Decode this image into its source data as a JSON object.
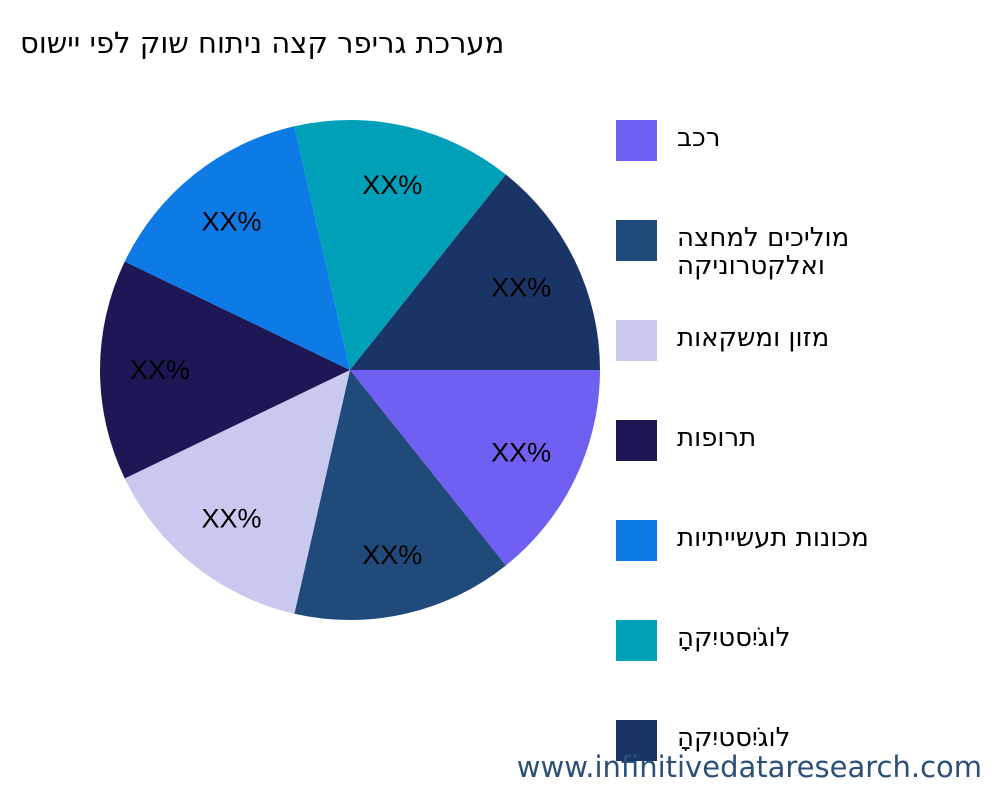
{
  "title": "סושיי יפל קוש חותינ הצק רפירג תכרעמ",
  "watermark": "www.infinitivedataresearch.com",
  "chart_data": {
    "type": "pie",
    "title": "סושיי יפל קוש חותינ הצק רפירג תכרעמ",
    "start_angle": "3 o'clock, clockwise",
    "legend_position": "right",
    "slices": [
      {
        "label": "בכר",
        "label_line2": "",
        "value": 1,
        "data_label": "XX%",
        "color": "#6f60f2"
      },
      {
        "label": "הצחמל םיכילומ",
        "label_line2": "הקינורטקלאו",
        "value": 1,
        "data_label": "XX%",
        "color": "#1f4a7a"
      },
      {
        "label": "תואקשמו ןוזמ",
        "label_line2": "",
        "value": 1,
        "data_label": "XX%",
        "color": "#c9c9f0"
      },
      {
        "label": "תופורת",
        "label_line2": "",
        "value": 1,
        "data_label": "XX%",
        "color": "#1e1756"
      },
      {
        "label": "תויתיישעת תונוכמ",
        "label_line2": "",
        "value": 1,
        "data_label": "XX%",
        "color": "#0e7ae6"
      },
      {
        "label": "הָקיִטסיִגֹול",
        "label_line2": "",
        "value": 1,
        "data_label": "XX%",
        "color": "#01a0b9"
      },
      {
        "label": "הָקיִטסיִגֹול",
        "label_line2": "",
        "value": 1,
        "data_label": "XX%",
        "color": "#1b3466"
      }
    ]
  }
}
